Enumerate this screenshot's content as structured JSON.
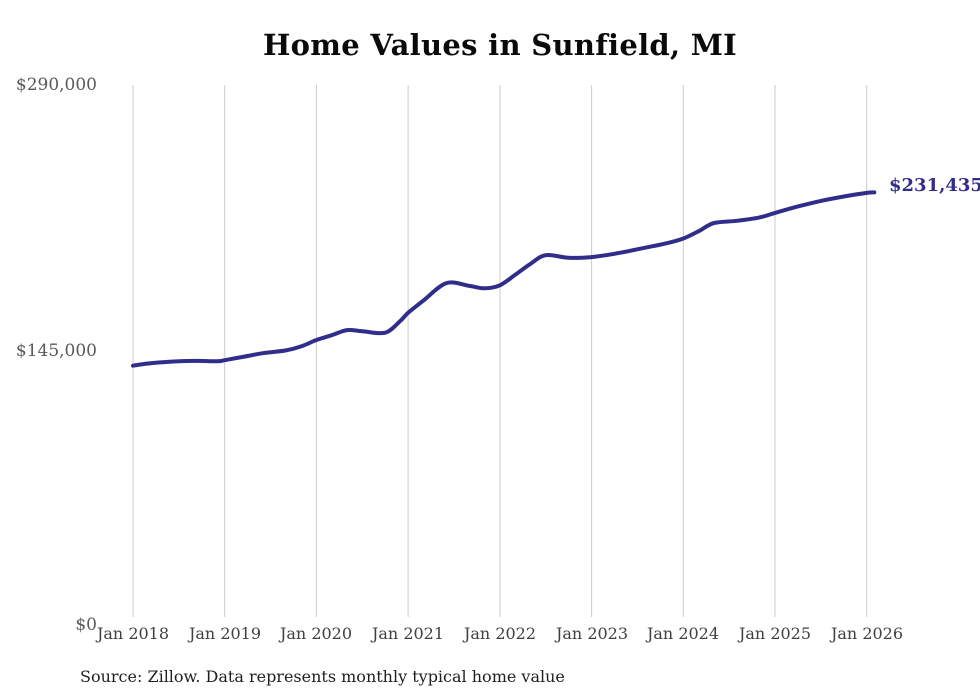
{
  "page": {
    "background_color": "#ffffff"
  },
  "chart": {
    "title": "Home Values in Sunfield, MI",
    "source_note": "Source: Zillow. Data represents monthly typical home value",
    "latest_value_label": "$231,435",
    "line_color": "#312d8a",
    "grid_color": "#cbcbcb"
  },
  "chart_data": {
    "type": "line",
    "title": "Home Values in Sunfield, MI",
    "series_name": "Monthly typical home value (USD)",
    "x": [
      "2018-01",
      "2018-03",
      "2018-06",
      "2018-09",
      "2018-12",
      "2019-01",
      "2019-03",
      "2019-06",
      "2019-09",
      "2019-11",
      "2020-01",
      "2020-03",
      "2020-05",
      "2020-07",
      "2020-10",
      "2020-12",
      "2021-01",
      "2021-03",
      "2021-06",
      "2021-09",
      "2021-11",
      "2022-01",
      "2022-03",
      "2022-05",
      "2022-07",
      "2022-10",
      "2023-01",
      "2023-04",
      "2023-08",
      "2023-11",
      "2024-01",
      "2024-03",
      "2024-05",
      "2024-08",
      "2024-11",
      "2025-01",
      "2025-04",
      "2025-07",
      "2025-10",
      "2026-01",
      "2026-02"
    ],
    "y": [
      137000,
      138200,
      139200,
      139600,
      139400,
      140000,
      141500,
      143800,
      145300,
      147500,
      151000,
      153600,
      156400,
      155800,
      155000,
      161500,
      165800,
      172500,
      182000,
      180500,
      179200,
      180800,
      186500,
      192500,
      197200,
      195800,
      196200,
      198000,
      201300,
      203900,
      206300,
      210300,
      214700,
      216000,
      217800,
      220300,
      223800,
      226800,
      229200,
      231200,
      231435
    ],
    "x_tick_labels": [
      "Jan 2018",
      "Jan 2019",
      "Jan 2020",
      "Jan 2021",
      "Jan 2022",
      "Jan 2023",
      "Jan 2024",
      "Jan 2025",
      "Jan 2026"
    ],
    "y_tick_labels": [
      "$0",
      "$145,000",
      "$290,000"
    ],
    "y_ticks": [
      0,
      145000,
      290000
    ],
    "ylim": [
      0,
      290000
    ],
    "grid": "vertical-only",
    "legend": "none",
    "latest_value": 231435,
    "latest_label": "$231,435"
  }
}
